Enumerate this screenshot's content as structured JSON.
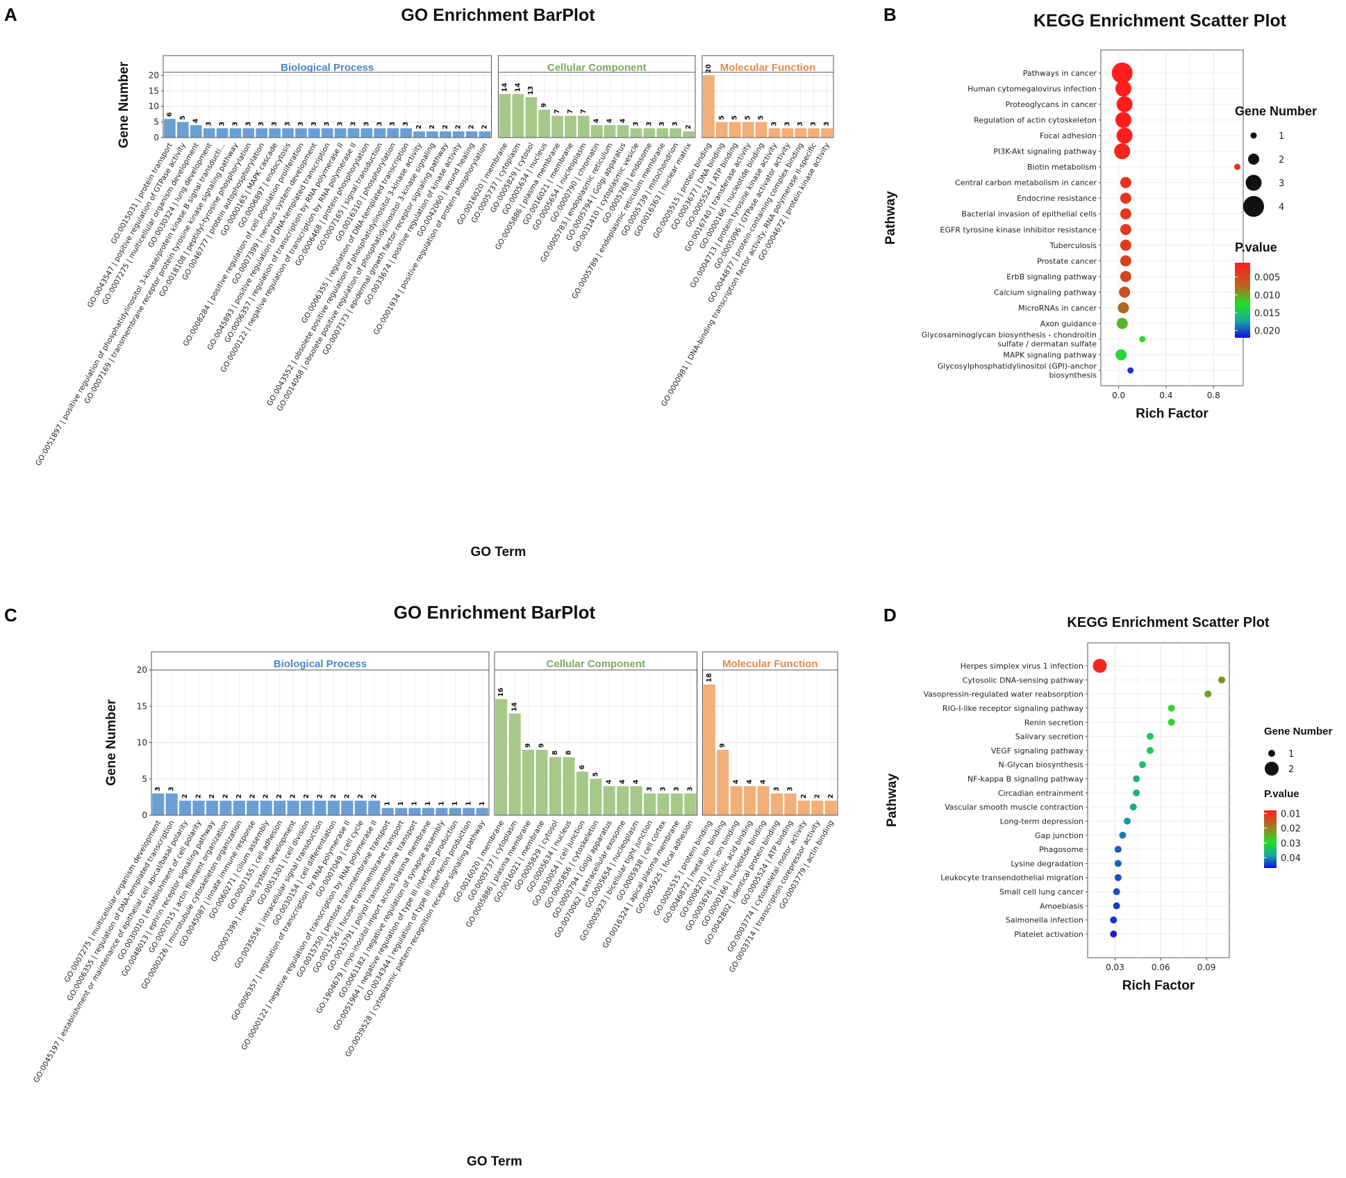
{
  "panels": [
    "A",
    "B",
    "C",
    "D"
  ],
  "colors": {
    "bp": "#6a9fd4",
    "bp_head": "#4a86c5",
    "cc": "#a6c98a",
    "cc_head": "#82b366",
    "mf": "#f4ae78",
    "mf_head": "#e9965a",
    "bp_text": "#4a86c5",
    "cc_text": "#7aab5b",
    "mf_text": "#e08a45"
  },
  "chart_data": [
    {
      "panel": "A",
      "type": "bar",
      "title": "GO Enrichment BarPlot",
      "xlabel": "GO Term",
      "ylabel": "Gene Number",
      "ylim": [
        0,
        21
      ],
      "yticks": [
        0,
        5,
        10,
        15,
        20
      ],
      "facets": [
        {
          "name": "Biological Process",
          "key": "bp",
          "categories": [
            "GO:0015031 | protein transport",
            "GO:0043547 | positive regulation of GTPase activity",
            "GO:0007275 | multicellular organism development",
            "GO:0030324 | lung development",
            "GO:0051897 | positive regulation of phosphatidylinositol 3-kinase/protein kinase B signal transducti...",
            "GO:0007169 | transmembrane receptor protein tyrosine kinase signaling pathway",
            "GO:0018108 | peptidyl-tyrosine phosphorylation",
            "GO:0046777 | protein autophosphorylation",
            "GO:0000165 | MAPK cascade",
            "GO:0006897 | endocytosis",
            "GO:0008284 | positive regulation of cell population proliferation",
            "GO:0007399 | nervous system development",
            "GO:0045893 | positive regulation of DNA-templated transcription",
            "GO:0006357 | regulation of transcription by RNA polymerase II",
            "GO:0000122 | negative regulation of transcription by RNA polymerase II",
            "GO:0006468 | protein phosphorylation",
            "GO:0007165 | signal transduction",
            "GO:0016310 | phosphorylation",
            "GO:0006355 | regulation of DNA-templated transcription",
            "GO:0043552 | obsolete positive regulation of phosphatidylinositol 3-kinase activity",
            "GO:0014068 | obsolete positive regulation of phosphatidylinositol 3-kinase signaling",
            "GO:0007173 | epidermal growth factor receptor signaling pathway",
            "GO:0033674 | positive regulation of kinase activity",
            "GO:0042060 | wound healing",
            "GO:0001934 | positive regulation of protein phosphorylation"
          ],
          "values": [
            6,
            5,
            4,
            3,
            3,
            3,
            3,
            3,
            3,
            3,
            3,
            3,
            3,
            3,
            3,
            3,
            3,
            3,
            3,
            2,
            2,
            2,
            2,
            2,
            2
          ]
        },
        {
          "name": "Cellular Component",
          "key": "cc",
          "categories": [
            "GO:0016020 | membrane",
            "GO:0005737 | cytoplasm",
            "GO:0005829 | cytosol",
            "GO:0005634 | nucleus",
            "GO:0005886 | plasma membrane",
            "GO:0016021 | membrane",
            "GO:0005654 | nucleoplasm",
            "GO:0000790 | chromatin",
            "GO:0005783 | endoplasmic reticulum",
            "GO:0005794 | Golgi apparatus",
            "GO:0031410 | cytoplasmic vesicle",
            "GO:0005768 | endosome",
            "GO:0005789 | endoplasmic reticulum membrane",
            "GO:0005739 | mitochondrion",
            "GO:0016363 | nuclear matrix"
          ],
          "values": [
            14,
            14,
            13,
            9,
            7,
            7,
            7,
            4,
            4,
            4,
            3,
            3,
            3,
            3,
            2
          ]
        },
        {
          "name": "Molecular Function",
          "key": "mf",
          "categories": [
            "GO:0005515 | protein binding",
            "GO:0003677 | DNA binding",
            "GO:0005524 | ATP binding",
            "GO:0016740 | transferase activity",
            "GO:0000166 | nucleotide binding",
            "GO:0004713 | protein tyrosine kinase activity",
            "GO:0005096 | GTPase activator activity",
            "GO:0044877 | protein-containing complex binding",
            "GO:0000981 | DNA-binding transcription factor activity, RNA polymerase II-specific",
            "GO:0004672 | protein kinase activity"
          ],
          "values": [
            20,
            5,
            5,
            5,
            5,
            3,
            3,
            3,
            3,
            3
          ]
        }
      ]
    },
    {
      "panel": "B",
      "type": "scatter",
      "title": "KEGG Enrichment Scatter Plot",
      "xlabel": "Rich Factor",
      "ylabel": "Pathway",
      "xlim": [
        -0.15,
        1.05
      ],
      "xticks": [
        0.0,
        0.4,
        0.8
      ],
      "xtick_labels": [
        "0.0",
        "0.4",
        "0.8"
      ],
      "pvalue_range": [
        0.001,
        0.022
      ],
      "points": [
        {
          "pathway": "Pathways in cancer",
          "rich": 0.03,
          "genes": 4,
          "p": 0.0005
        },
        {
          "pathway": "Human cytomegalovirus infection",
          "rich": 0.04,
          "genes": 3,
          "p": 0.001
        },
        {
          "pathway": "Proteoglycans in cancer",
          "rich": 0.05,
          "genes": 3,
          "p": 0.001
        },
        {
          "pathway": "Regulation of actin cytoskeleton",
          "rich": 0.04,
          "genes": 3,
          "p": 0.001
        },
        {
          "pathway": "Focal adhesion",
          "rich": 0.05,
          "genes": 3,
          "p": 0.001
        },
        {
          "pathway": "PI3K-Akt signaling pathway",
          "rich": 0.03,
          "genes": 3,
          "p": 0.0015
        },
        {
          "pathway": "Biotin metabolism",
          "rich": 1.0,
          "genes": 1,
          "p": 0.003
        },
        {
          "pathway": "Central carbon metabolism in cancer",
          "rich": 0.06,
          "genes": 2,
          "p": 0.003
        },
        {
          "pathway": "Endocrine resistance",
          "rich": 0.06,
          "genes": 2,
          "p": 0.0035
        },
        {
          "pathway": "Bacterial invasion of epithelial cells",
          "rich": 0.06,
          "genes": 2,
          "p": 0.0035
        },
        {
          "pathway": "EGFR tyrosine kinase inhibitor resistance",
          "rich": 0.06,
          "genes": 2,
          "p": 0.0038
        },
        {
          "pathway": "Tuberculosis",
          "rich": 0.06,
          "genes": 2,
          "p": 0.004
        },
        {
          "pathway": "Prostate cancer",
          "rich": 0.06,
          "genes": 2,
          "p": 0.0045
        },
        {
          "pathway": "ErbB signaling pathway",
          "rich": 0.06,
          "genes": 2,
          "p": 0.005
        },
        {
          "pathway": "Calcium signaling pathway",
          "rich": 0.05,
          "genes": 2,
          "p": 0.006
        },
        {
          "pathway": "MicroRNAs in cancer",
          "rich": 0.04,
          "genes": 2,
          "p": 0.008
        },
        {
          "pathway": "Axon guidance",
          "rich": 0.03,
          "genes": 2,
          "p": 0.0115
        },
        {
          "pathway": "Glycosaminoglycan biosynthesis - chondroitin sulfate / dermatan sulfate",
          "rich": 0.2,
          "genes": 1,
          "p": 0.0125
        },
        {
          "pathway": "MAPK signaling pathway",
          "rich": 0.02,
          "genes": 2,
          "p": 0.013
        },
        {
          "pathway": "Glycosylphosphatidylinositol (GPI)-anchor biosynthesis",
          "rich": 0.1,
          "genes": 1,
          "p": 0.021
        }
      ],
      "size_legend": {
        "title": "Gene Number",
        "values": [
          1,
          2,
          3,
          4
        ]
      },
      "color_legend": {
        "title": "P.value",
        "ticks": [
          0.005,
          0.01,
          0.015,
          0.02
        ],
        "tick_labels": [
          "0.005",
          "0.010",
          "0.015",
          "0.020"
        ]
      }
    },
    {
      "panel": "C",
      "type": "bar",
      "title": "GO Enrichment BarPlot",
      "xlabel": "GO Term",
      "ylabel": "Gene Number",
      "ylim": [
        0,
        20
      ],
      "yticks": [
        0,
        5,
        10,
        15,
        20
      ],
      "facets": [
        {
          "name": "Biological Process",
          "key": "bp",
          "categories": [
            "GO:0007275 | multicellular organism development",
            "GO:0006355 | regulation of DNA-templated transcription",
            "GO:0045197 | establishment or maintenance of epithelial cell apical/basal polarity",
            "GO:0030010 | establishment of cell polarity",
            "GO:0048013 | ephrin receptor signaling pathway",
            "GO:0007015 | actin filament organization",
            "GO:0000226 | microtubule cytoskeleton organization",
            "GO:0045087 | innate immune response",
            "GO:0060271 | cilium assembly",
            "GO:0007155 | cell adhesion",
            "GO:0007399 | nervous system development",
            "GO:0051301 | cell division",
            "GO:0035556 | intracellular signal transduction",
            "GO:0030154 | cell differentiation",
            "GO:0006357 | regulation of transcription by RNA polymerase II",
            "GO:0007049 | cell cycle",
            "GO:0000122 | negative regulation of transcription by RNA polymerase II",
            "GO:0015750 | pentose transmembrane transport",
            "GO:0015756 | fucose transmembrane transport",
            "GO:0015791 | polyol transmembrane transport",
            "GO:1904679 | myo-inositol import across plasma membrane",
            "GO:0061182 | negative regulation of synapse assembly",
            "GO:0051964 | negative regulation of type III interferon production",
            "GO:0034344 | regulation of type III interferon production",
            "GO:0039528 | cytoplasmic pattern recognition receptor signaling pathway"
          ],
          "values": [
            3,
            3,
            2,
            2,
            2,
            2,
            2,
            2,
            2,
            2,
            2,
            2,
            2,
            2,
            2,
            2,
            2,
            1,
            1,
            1,
            1,
            1,
            1,
            1,
            1
          ]
        },
        {
          "name": "Cellular Component",
          "key": "cc",
          "categories": [
            "GO:0016020 | membrane",
            "GO:0005737 | cytoplasm",
            "GO:0005886 | plasma membrane",
            "GO:0016021 | membrane",
            "GO:0005829 | cytosol",
            "GO:0005634 | nucleus",
            "GO:0030054 | cell junction",
            "GO:0005856 | cytoskeleton",
            "GO:0005794 | Golgi apparatus",
            "GO:0070062 | extracellular exosome",
            "GO:0005654 | nucleoplasm",
            "GO:0005923 | bicellular tight junction",
            "GO:0005938 | cell cortex",
            "GO:0016324 | apical plasma membrane",
            "GO:0005925 | focal adhesion"
          ],
          "values": [
            16,
            14,
            9,
            9,
            8,
            8,
            6,
            5,
            4,
            4,
            4,
            3,
            3,
            3,
            3
          ]
        },
        {
          "name": "Molecular Function",
          "key": "mf",
          "categories": [
            "GO:0005515 | protein binding",
            "GO:0046872 | metal ion binding",
            "GO:0008270 | zinc ion binding",
            "GO:0003676 | nucleic acid binding",
            "GO:0000166 | nucleotide binding",
            "GO:0042802 | identical protein binding",
            "GO:0005524 | ATP binding",
            "GO:0003774 | cytoskeletal motor activity",
            "GO:0003714 | transcription corepressor activity",
            "GO:0003779 | actin binding"
          ],
          "values": [
            18,
            9,
            4,
            4,
            4,
            3,
            3,
            2,
            2,
            2
          ]
        }
      ]
    },
    {
      "panel": "D",
      "type": "scatter",
      "title": "KEGG Enrichment Scatter Plot",
      "xlabel": "Rich Factor",
      "ylabel": "Pathway",
      "xlim": [
        0.012,
        0.105
      ],
      "xticks": [
        0.03,
        0.06,
        0.09
      ],
      "xtick_labels": [
        "0.03",
        "0.06",
        "0.09"
      ],
      "pvalue_range": [
        0.008,
        0.047
      ],
      "points": [
        {
          "pathway": "Herpes simplex virus 1 infection",
          "rich": 0.02,
          "genes": 2,
          "p": 0.009
        },
        {
          "pathway": "Cytosolic DNA-sensing pathway",
          "rich": 0.1,
          "genes": 1,
          "p": 0.022
        },
        {
          "pathway": "Vasopressin-regulated water reabsorption",
          "rich": 0.091,
          "genes": 1,
          "p": 0.023
        },
        {
          "pathway": "RIG-I-like receptor signaling pathway",
          "rich": 0.067,
          "genes": 1,
          "p": 0.027
        },
        {
          "pathway": "Renin secretion",
          "rich": 0.067,
          "genes": 1,
          "p": 0.027
        },
        {
          "pathway": "Salivary secretion",
          "rich": 0.053,
          "genes": 1,
          "p": 0.031
        },
        {
          "pathway": "VEGF signaling pathway",
          "rich": 0.053,
          "genes": 1,
          "p": 0.031
        },
        {
          "pathway": "N-Glycan biosynthesis",
          "rich": 0.048,
          "genes": 1,
          "p": 0.033
        },
        {
          "pathway": "NF-kappa B signaling pathway",
          "rich": 0.044,
          "genes": 1,
          "p": 0.035
        },
        {
          "pathway": "Circadian entrainment",
          "rich": 0.044,
          "genes": 1,
          "p": 0.035
        },
        {
          "pathway": "Vascular smooth muscle contraction",
          "rich": 0.042,
          "genes": 1,
          "p": 0.036
        },
        {
          "pathway": "Long-term depression",
          "rich": 0.038,
          "genes": 1,
          "p": 0.038
        },
        {
          "pathway": "Gap junction",
          "rich": 0.035,
          "genes": 1,
          "p": 0.04
        },
        {
          "pathway": "Phagosome",
          "rich": 0.032,
          "genes": 1,
          "p": 0.042
        },
        {
          "pathway": "Lysine degradation",
          "rich": 0.032,
          "genes": 1,
          "p": 0.042
        },
        {
          "pathway": "Leukocyte transendothelial migration",
          "rich": 0.032,
          "genes": 1,
          "p": 0.043
        },
        {
          "pathway": "Small cell lung cancer",
          "rich": 0.031,
          "genes": 1,
          "p": 0.043
        },
        {
          "pathway": "Amoebiasis",
          "rich": 0.031,
          "genes": 1,
          "p": 0.044
        },
        {
          "pathway": "Salmonella infection",
          "rich": 0.029,
          "genes": 1,
          "p": 0.045
        },
        {
          "pathway": "Platelet activation",
          "rich": 0.029,
          "genes": 1,
          "p": 0.046
        }
      ],
      "size_legend": {
        "title": "Gene Number",
        "values": [
          1,
          2
        ]
      },
      "color_legend": {
        "title": "P.value",
        "ticks": [
          0.01,
          0.02,
          0.03,
          0.04
        ],
        "tick_labels": [
          "0.01",
          "0.02",
          "0.03",
          "0.04"
        ]
      }
    }
  ]
}
